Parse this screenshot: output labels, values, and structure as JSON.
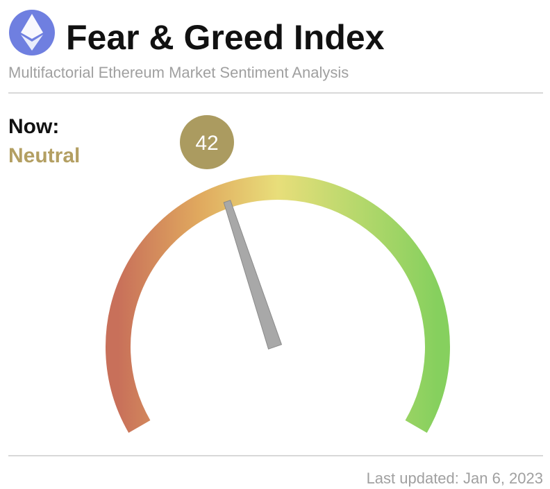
{
  "chart_data": {
    "type": "gauge",
    "title": "Fear & Greed Index",
    "subtitle": "Multifactorial Ethereum Market Sentiment Analysis",
    "now_label": "Now:",
    "status": "Neutral",
    "value": 42,
    "ylim": [
      0,
      100
    ],
    "colors": [
      "#c8705a",
      "#e0a85e",
      "#e8de7a",
      "#b6d86c",
      "#86d05e"
    ],
    "badge_color": "#ab9b60",
    "status_color": "#b39f62",
    "needle_color": "#a8a8a8",
    "updated": "Last updated: Jan 6, 2023"
  }
}
